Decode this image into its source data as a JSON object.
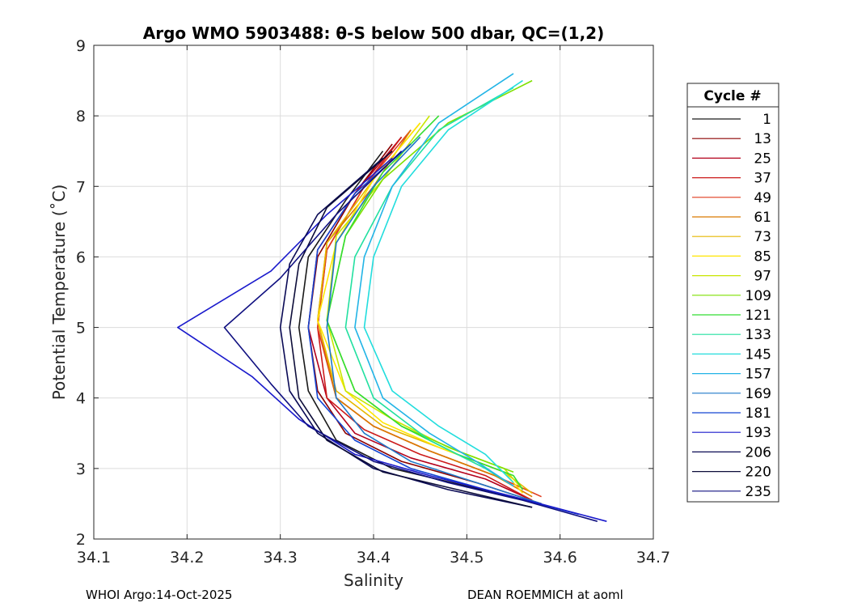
{
  "chart_data": {
    "type": "line",
    "title": "Argo WMO 5903488: θ-S below 500 dbar,  QC=(1,2)",
    "xlabel": "Salinity",
    "ylabel": "Potential Temperature (˚C)",
    "xlim": [
      34.1,
      34.7
    ],
    "ylim": [
      2,
      9
    ],
    "xticks": [
      34.1,
      34.2,
      34.3,
      34.4,
      34.5,
      34.6,
      34.7
    ],
    "yticks": [
      2,
      3,
      4,
      5,
      6,
      7,
      8,
      9
    ],
    "xtick_labels": [
      "34.1",
      "34.2",
      "34.3",
      "34.4",
      "34.5",
      "34.6",
      "34.7"
    ],
    "ytick_labels": [
      "2",
      "3",
      "4",
      "5",
      "6",
      "7",
      "8",
      "9"
    ],
    "grid": true,
    "legend_title": "Cycle #",
    "legend_position": "right",
    "series": [
      {
        "name": "1",
        "color": "#1a1a1a",
        "x": [
          34.41,
          34.37,
          34.33,
          34.32,
          34.33,
          34.36,
          34.42,
          34.5,
          34.58
        ],
        "y": [
          7.5,
          6.8,
          6.0,
          5.0,
          4.1,
          3.4,
          3.0,
          2.75,
          2.5
        ]
      },
      {
        "name": "13",
        "color": "#8b0000",
        "x": [
          34.42,
          34.38,
          34.34,
          34.33,
          34.34,
          34.37,
          34.43,
          34.51,
          34.58
        ],
        "y": [
          7.6,
          6.9,
          6.0,
          5.0,
          4.1,
          3.5,
          3.1,
          2.8,
          2.5
        ]
      },
      {
        "name": "25",
        "color": "#b3001b",
        "x": [
          34.43,
          34.38,
          34.34,
          34.33,
          34.35,
          34.38,
          34.44,
          34.52,
          34.57
        ],
        "y": [
          7.7,
          6.9,
          6.1,
          5.0,
          4.0,
          3.5,
          3.15,
          2.85,
          2.55
        ]
      },
      {
        "name": "37",
        "color": "#cc1a1a",
        "x": [
          34.43,
          34.39,
          34.35,
          34.34,
          34.35,
          34.39,
          34.45,
          34.52,
          34.57
        ],
        "y": [
          7.7,
          7.0,
          6.1,
          5.0,
          4.0,
          3.55,
          3.2,
          2.9,
          2.55
        ]
      },
      {
        "name": "49",
        "color": "#e03c1e",
        "x": [
          34.44,
          34.39,
          34.35,
          34.34,
          34.36,
          34.4,
          34.46,
          34.53,
          34.58
        ],
        "y": [
          7.8,
          7.0,
          6.1,
          5.0,
          4.0,
          3.6,
          3.25,
          2.9,
          2.6
        ]
      },
      {
        "name": "61",
        "color": "#d97a00",
        "x": [
          34.44,
          34.4,
          34.35,
          34.34,
          34.36,
          34.4,
          34.46,
          34.53,
          34.57
        ],
        "y": [
          7.8,
          7.0,
          6.2,
          5.1,
          4.0,
          3.6,
          3.25,
          2.9,
          2.6
        ]
      },
      {
        "name": "73",
        "color": "#e6b800",
        "x": [
          34.45,
          34.4,
          34.35,
          34.34,
          34.36,
          34.41,
          34.47,
          34.54,
          34.57
        ],
        "y": [
          7.9,
          7.1,
          6.2,
          5.1,
          4.1,
          3.6,
          3.3,
          2.95,
          2.65
        ]
      },
      {
        "name": "85",
        "color": "#ffe600",
        "x": [
          34.45,
          34.4,
          34.36,
          34.34,
          34.37,
          34.41,
          34.47,
          34.54,
          34.56
        ],
        "y": [
          7.9,
          7.1,
          6.2,
          5.1,
          4.1,
          3.65,
          3.3,
          2.95,
          2.65
        ]
      },
      {
        "name": "97",
        "color": "#c8e600",
        "x": [
          34.46,
          34.41,
          34.36,
          34.35,
          34.37,
          34.42,
          34.48,
          34.54,
          34.56
        ],
        "y": [
          8.0,
          7.1,
          6.3,
          5.1,
          4.1,
          3.7,
          3.3,
          3.0,
          2.7
        ]
      },
      {
        "name": "109",
        "color": "#7fe000",
        "x": [
          34.57,
          34.48,
          34.41,
          34.37,
          34.35,
          34.38,
          34.43,
          34.49,
          34.55
        ],
        "y": [
          8.5,
          7.9,
          7.1,
          6.3,
          5.1,
          4.1,
          3.6,
          3.25,
          2.95
        ]
      },
      {
        "name": "121",
        "color": "#33dd33",
        "x": [
          34.47,
          34.41,
          34.37,
          34.35,
          34.38,
          34.43,
          34.49,
          34.55,
          34.56
        ],
        "y": [
          8.0,
          7.2,
          6.3,
          5.1,
          4.1,
          3.6,
          3.2,
          2.9,
          2.7
        ]
      },
      {
        "name": "133",
        "color": "#22e0a0",
        "x": [
          34.55,
          34.47,
          34.42,
          34.38,
          34.37,
          34.4,
          34.46,
          34.52,
          34.55
        ],
        "y": [
          8.4,
          7.8,
          7.0,
          6.0,
          5.0,
          4.0,
          3.4,
          3.0,
          2.75
        ]
      },
      {
        "name": "145",
        "color": "#22dddd",
        "x": [
          34.56,
          34.48,
          34.43,
          34.4,
          34.39,
          34.42,
          34.47,
          34.52,
          34.55
        ],
        "y": [
          8.5,
          7.8,
          7.0,
          6.0,
          5.0,
          4.1,
          3.6,
          3.2,
          2.8
        ]
      },
      {
        "name": "157",
        "color": "#22b4e6",
        "x": [
          34.55,
          34.47,
          34.42,
          34.39,
          34.38,
          34.41,
          34.46,
          34.51,
          34.55
        ],
        "y": [
          8.6,
          7.9,
          7.0,
          6.0,
          5.0,
          4.0,
          3.5,
          3.1,
          2.75
        ]
      },
      {
        "name": "169",
        "color": "#1f78c8",
        "x": [
          34.45,
          34.4,
          34.36,
          34.35,
          34.36,
          34.39,
          34.44,
          34.51,
          34.58
        ],
        "y": [
          7.7,
          7.0,
          6.2,
          5.0,
          4.0,
          3.5,
          3.1,
          2.8,
          2.5
        ]
      },
      {
        "name": "181",
        "color": "#1446d2",
        "x": [
          34.44,
          34.38,
          34.34,
          34.33,
          34.34,
          34.38,
          34.44,
          34.52,
          34.62
        ],
        "y": [
          7.6,
          6.9,
          6.1,
          5.0,
          4.0,
          3.4,
          3.0,
          2.7,
          2.35
        ]
      },
      {
        "name": "193",
        "color": "#1a1acc",
        "x": [
          34.42,
          34.35,
          34.29,
          34.19,
          34.27,
          34.32,
          34.38,
          34.46,
          34.55,
          34.65
        ],
        "y": [
          7.4,
          6.6,
          5.8,
          5.0,
          4.3,
          3.7,
          3.2,
          2.9,
          2.6,
          2.25
        ]
      },
      {
        "name": "206",
        "color": "#0a0a55",
        "x": [
          34.41,
          34.34,
          34.31,
          34.3,
          34.31,
          34.34,
          34.4,
          34.48,
          34.57
        ],
        "y": [
          7.4,
          6.6,
          5.9,
          5.0,
          4.1,
          3.5,
          3.0,
          2.7,
          2.45
        ]
      },
      {
        "name": "220",
        "color": "#0d0d3a",
        "x": [
          34.42,
          34.35,
          34.32,
          34.31,
          34.32,
          34.35,
          34.41,
          34.49,
          34.57
        ],
        "y": [
          7.5,
          6.7,
          5.9,
          5.0,
          4.0,
          3.4,
          2.95,
          2.7,
          2.45
        ]
      },
      {
        "name": "235",
        "color": "#101080",
        "x": [
          34.43,
          34.36,
          34.3,
          34.24,
          34.29,
          34.33,
          34.4,
          34.48,
          34.56,
          34.64
        ],
        "y": [
          7.5,
          6.6,
          5.7,
          5.0,
          4.2,
          3.6,
          3.1,
          2.8,
          2.55,
          2.25
        ]
      }
    ]
  },
  "footer": {
    "left": "WHOI Argo:14-Oct-2025",
    "right": "DEAN ROEMMICH at aoml"
  }
}
